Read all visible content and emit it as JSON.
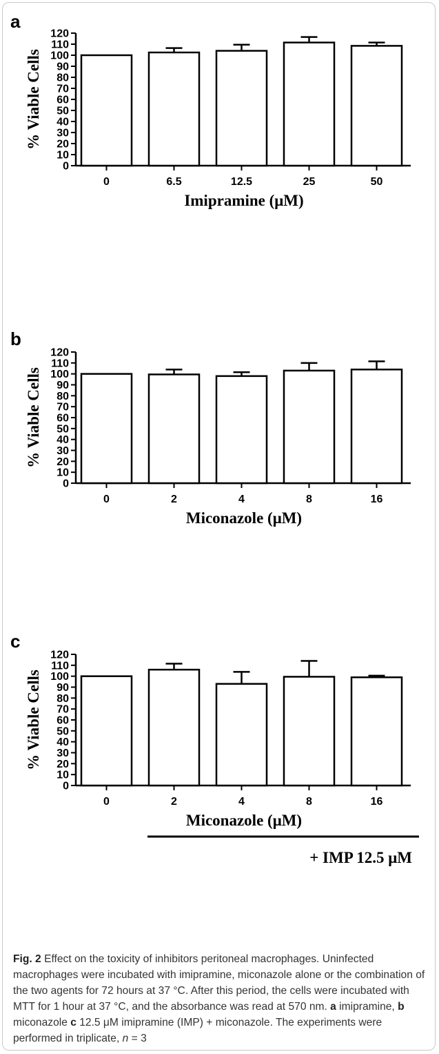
{
  "caption": {
    "fig_label": "Fig. 2",
    "title": " Effect on the toxicity of inhibitors peritoneal macrophages.",
    "text_1": " Uninfected macrophages were incubated with imipramine, miconazole alone or the combination of the two agents for 72 hours at 37 °C. After this period, the cells were incubated with MTT for 1 hour at 37 °C, and the absorbance was read at 570 nm. ",
    "a": "a",
    "text_a": " imipramine, ",
    "b": "b",
    "text_b": " miconazole ",
    "c": "c",
    "text_c": " 12.5 μM imipramine (IMP) + miconazole. The experiments were performed in triplicate, ",
    "n_italic": "n",
    "text_end": " = 3"
  },
  "chart_data": [
    {
      "type": "bar",
      "panel": "a",
      "categories": [
        "0",
        "6.5",
        "12.5",
        "25",
        "50"
      ],
      "values": [
        100,
        102.5,
        104,
        111.5,
        108.5
      ],
      "errors": [
        0,
        4,
        5.5,
        5,
        3
      ],
      "ylabel": "% Viable Cells",
      "xlabel": "Imipramine (μM)",
      "ylim": [
        0,
        120
      ],
      "yticks": [
        0,
        10,
        20,
        30,
        40,
        50,
        60,
        70,
        80,
        90,
        100,
        110,
        120
      ],
      "bar_color": "#ffffff",
      "edge_color": "#000000",
      "grid": false
    },
    {
      "type": "bar",
      "panel": "b",
      "categories": [
        "0",
        "2",
        "4",
        "8",
        "16"
      ],
      "values": [
        100,
        99.5,
        98,
        103,
        104
      ],
      "errors": [
        0,
        4.5,
        3.5,
        7,
        7.5
      ],
      "ylabel": "% Viable Cells",
      "xlabel": "Miconazole (μM)",
      "ylim": [
        0,
        120
      ],
      "yticks": [
        0,
        10,
        20,
        30,
        40,
        50,
        60,
        70,
        80,
        90,
        100,
        110,
        120
      ],
      "bar_color": "#ffffff",
      "edge_color": "#000000",
      "grid": false
    },
    {
      "type": "bar",
      "panel": "c",
      "categories": [
        "0",
        "2",
        "4",
        "8",
        "16"
      ],
      "values": [
        100,
        106,
        93,
        99.5,
        99
      ],
      "errors": [
        0,
        5.5,
        11,
        14.5,
        1.5
      ],
      "ylabel": "% Viable Cells",
      "xlabel": "Miconazole (μM)",
      "bracket_label": "+ IMP 12.5 μM",
      "ylim": [
        0,
        120
      ],
      "yticks": [
        0,
        10,
        20,
        30,
        40,
        50,
        60,
        70,
        80,
        90,
        100,
        110,
        120
      ],
      "bar_color": "#ffffff",
      "edge_color": "#000000",
      "grid": false
    }
  ]
}
